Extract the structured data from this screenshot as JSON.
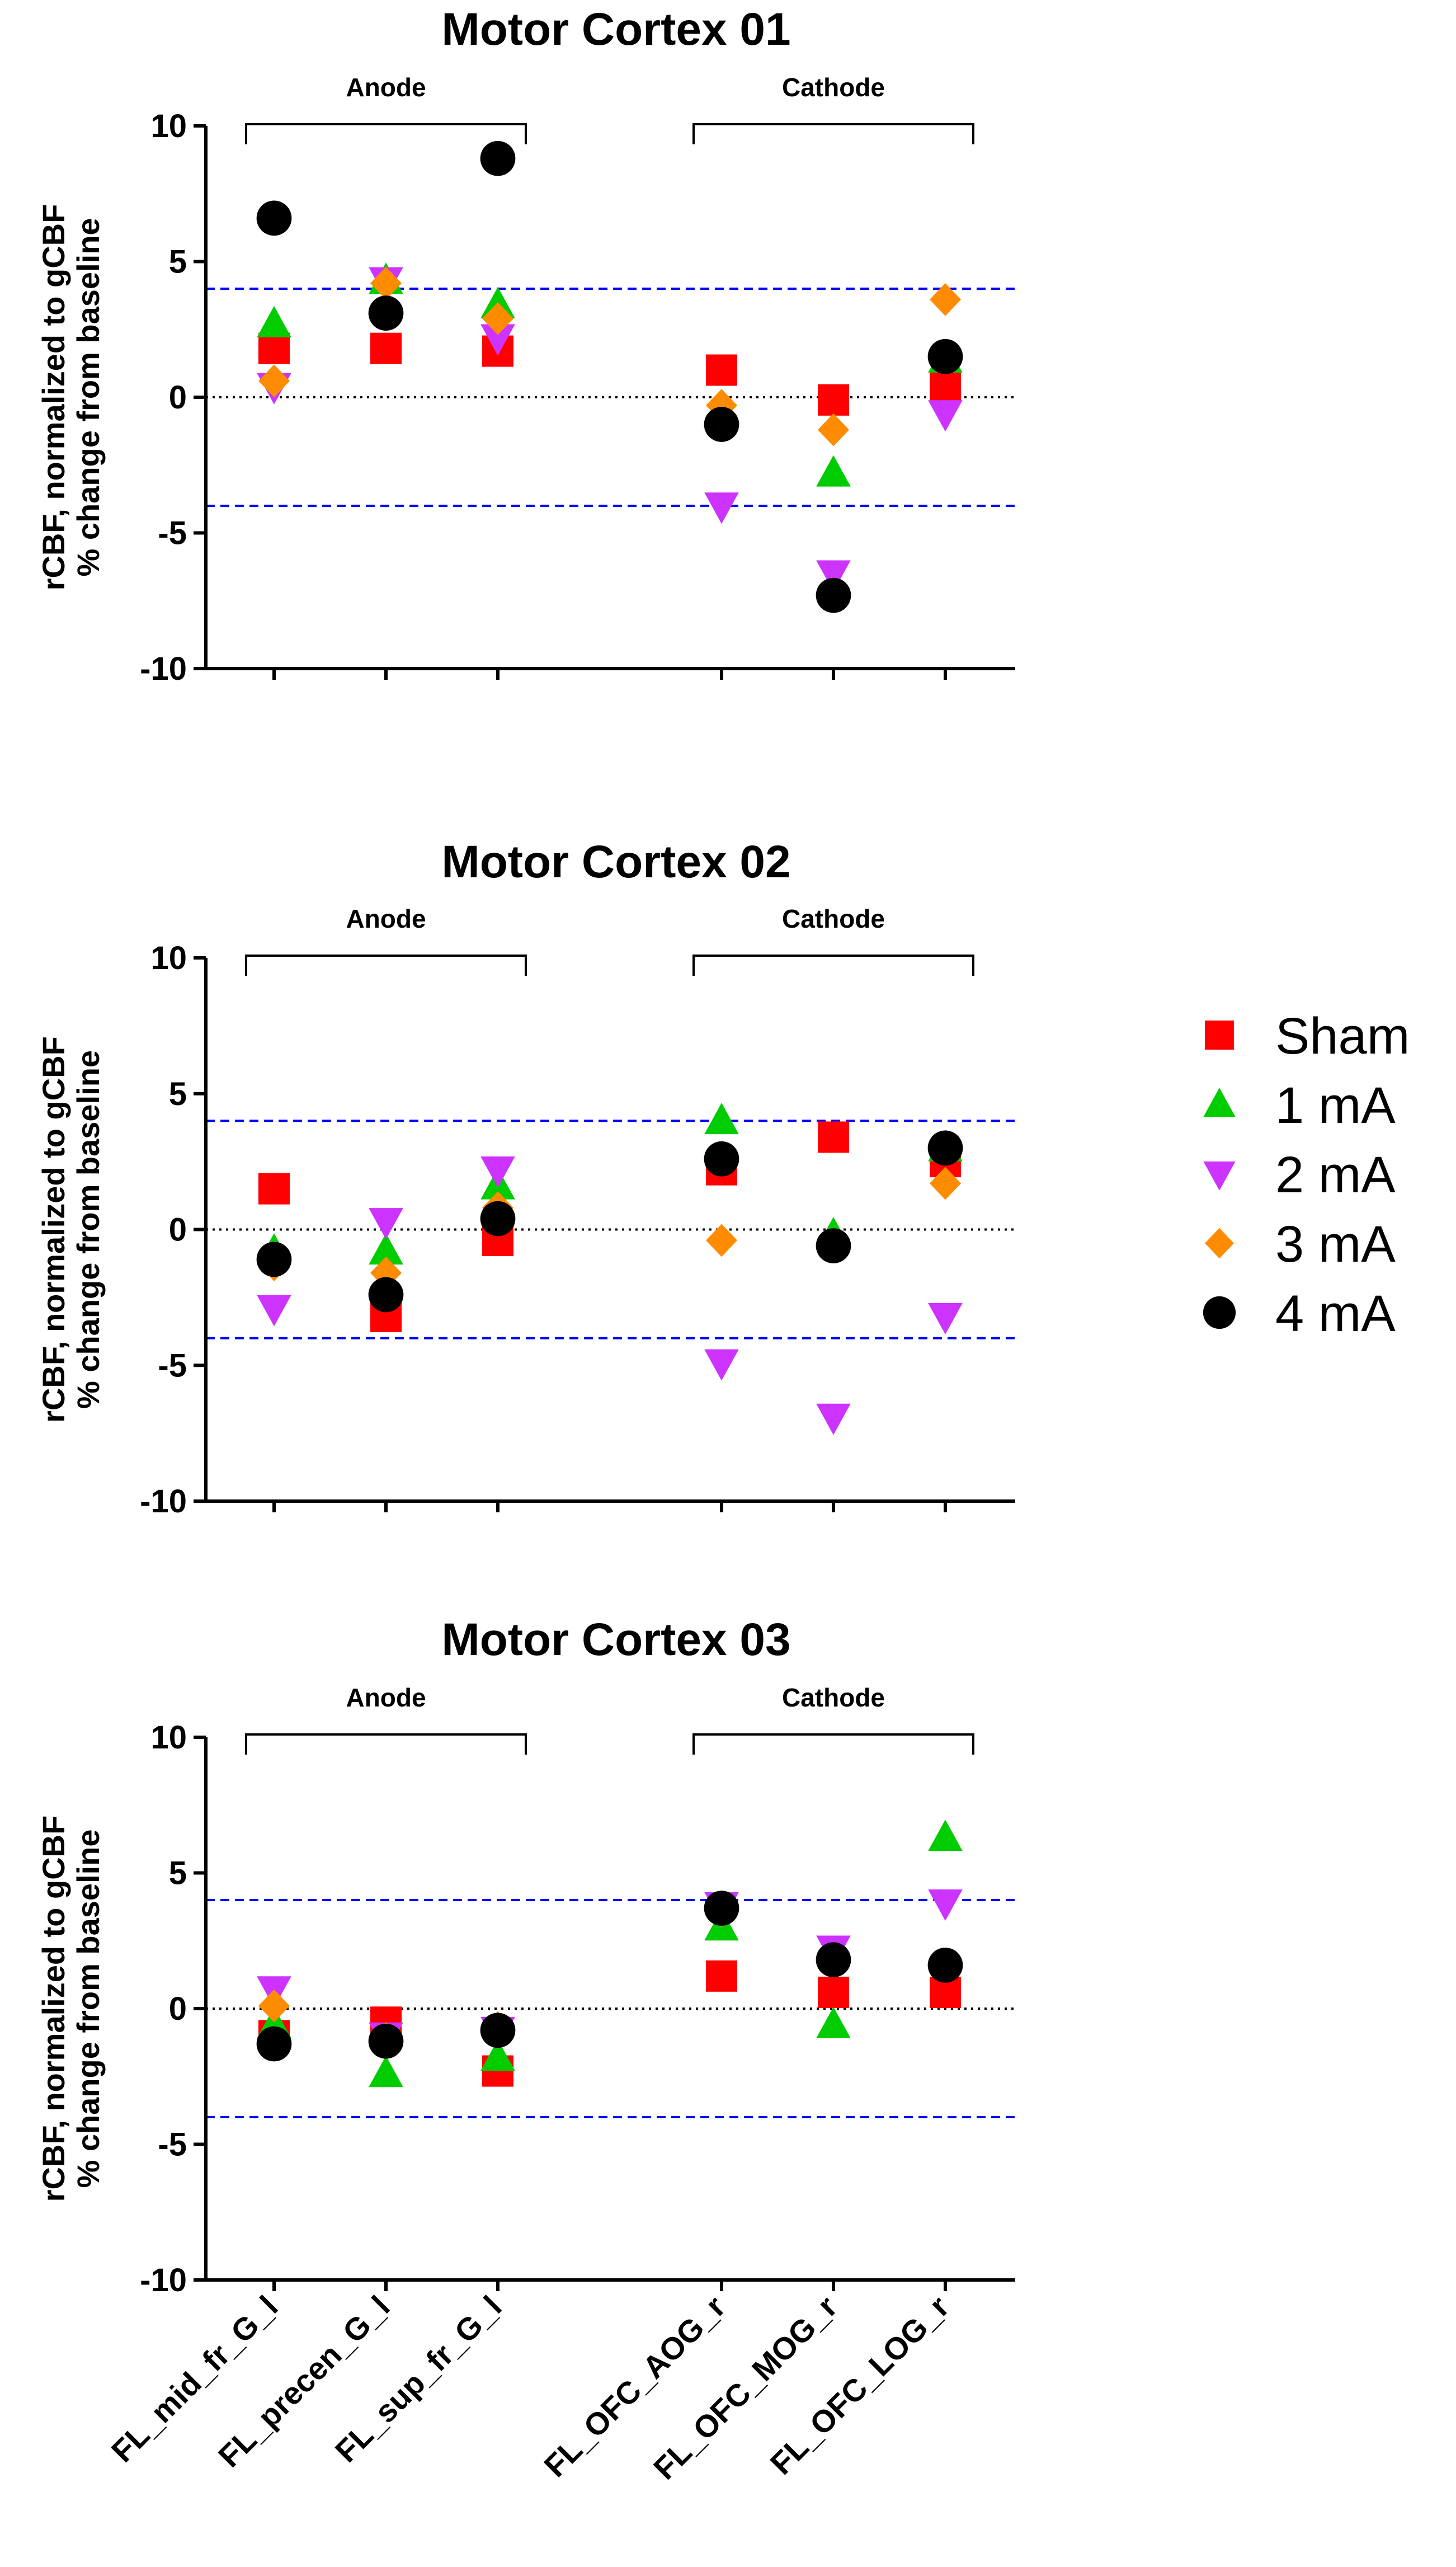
{
  "legend": [
    {
      "name": "Sham",
      "marker": "square",
      "color": "#ff0000"
    },
    {
      "name": "1 mA",
      "marker": "triangle-up",
      "color": "#00cc00"
    },
    {
      "name": "2 mA",
      "marker": "triangle-down",
      "color": "#cc33ff"
    },
    {
      "name": "3 mA",
      "marker": "diamond",
      "color": "#ff8c00"
    },
    {
      "name": "4 mA",
      "marker": "circle",
      "color": "#000000"
    }
  ],
  "reference_lines": {
    "zero_color": "#000000",
    "threshold_color": "#0000ff",
    "threshold": [
      4,
      -4
    ]
  },
  "chart_data": [
    {
      "type": "scatter",
      "title": "Motor Cortex 01",
      "ylabel_line1": "rCBF, normalized to gCBF",
      "ylabel_line2": "% change from baseline",
      "ylim": [
        -10,
        10
      ],
      "yticks": [
        "10",
        "5",
        "0",
        "-5",
        "-10"
      ],
      "groups": [
        {
          "label": "Anode",
          "from": 0,
          "to": 2
        },
        {
          "label": "Cathode",
          "from": 3,
          "to": 5
        }
      ],
      "categories": [
        "FL_mid_fr_G_l",
        "FL_precen_G_l",
        "FL_sup_fr_G_l",
        "FL_OFC_AOG_r",
        "FL_OFC_MOG_r",
        "FL_OFC_LOG_r"
      ],
      "show_category_labels": false,
      "series": [
        {
          "name": "Sham",
          "values": [
            1.8,
            1.8,
            1.7,
            1.0,
            -0.1,
            0.4
          ]
        },
        {
          "name": "1 mA",
          "values": [
            2.7,
            4.3,
            3.4,
            -0.7,
            -2.8,
            1.4
          ]
        },
        {
          "name": "2 mA",
          "values": [
            0.4,
            4.3,
            2.2,
            -4.0,
            -6.5,
            -0.6
          ]
        },
        {
          "name": "3 mA",
          "values": [
            0.6,
            4.2,
            2.9,
            -0.3,
            -1.2,
            3.6
          ]
        },
        {
          "name": "4 mA",
          "values": [
            6.6,
            3.1,
            8.8,
            -1.0,
            -7.3,
            1.5
          ]
        }
      ]
    },
    {
      "type": "scatter",
      "title": "Motor Cortex 02",
      "ylabel_line1": "rCBF, normalized to gCBF",
      "ylabel_line2": "% change from baseline",
      "ylim": [
        -10,
        10
      ],
      "yticks": [
        "10",
        "5",
        "0",
        "-5",
        "-10"
      ],
      "groups": [
        {
          "label": "Anode",
          "from": 0,
          "to": 2
        },
        {
          "label": "Cathode",
          "from": 3,
          "to": 5
        }
      ],
      "categories": [
        "FL_mid_fr_G_l",
        "FL_precen_G_l",
        "FL_sup_fr_G_l",
        "FL_OFC_AOG_r",
        "FL_OFC_MOG_r",
        "FL_OFC_LOG_r"
      ],
      "show_category_labels": false,
      "series": [
        {
          "name": "Sham",
          "values": [
            1.5,
            -3.2,
            -0.4,
            2.2,
            3.4,
            2.5
          ]
        },
        {
          "name": "1 mA",
          "values": [
            -0.8,
            -0.8,
            1.6,
            4.0,
            -0.2,
            3.0
          ]
        },
        {
          "name": "2 mA",
          "values": [
            -2.9,
            0.3,
            2.2,
            -4.9,
            -6.9,
            -3.2
          ]
        },
        {
          "name": "3 mA",
          "values": [
            -1.3,
            -1.6,
            0.8,
            -0.4,
            -0.6,
            1.7
          ]
        },
        {
          "name": "4 mA",
          "values": [
            -1.1,
            -2.4,
            0.4,
            2.6,
            -0.6,
            3.0
          ]
        }
      ]
    },
    {
      "type": "scatter",
      "title": "Motor Cortex 03",
      "ylabel_line1": "rCBF, normalized to gCBF",
      "ylabel_line2": "% change from baseline",
      "ylim": [
        -10,
        10
      ],
      "yticks": [
        "10",
        "5",
        "0",
        "-5",
        "-10"
      ],
      "groups": [
        {
          "label": "Anode",
          "from": 0,
          "to": 2
        },
        {
          "label": "Cathode",
          "from": 3,
          "to": 5
        }
      ],
      "categories": [
        "FL_mid_fr_G_l",
        "FL_precen_G_l",
        "FL_sup_fr_G_l",
        "FL_OFC_AOG_r",
        "FL_OFC_MOG_r",
        "FL_OFC_LOG_r"
      ],
      "show_category_labels": true,
      "series": [
        {
          "name": "Sham",
          "values": [
            -1.0,
            -0.5,
            -2.3,
            1.2,
            0.6,
            0.6
          ]
        },
        {
          "name": "1 mA",
          "values": [
            -0.6,
            -2.4,
            -1.8,
            3.0,
            -0.6,
            6.3
          ]
        },
        {
          "name": "2 mA",
          "values": [
            0.7,
            -1.0,
            -0.8,
            3.8,
            2.2,
            3.9
          ]
        },
        {
          "name": "3 mA",
          "values": [
            0.1,
            -1.1,
            -0.7,
            3.6,
            1.8,
            1.6
          ]
        },
        {
          "name": "4 mA",
          "values": [
            -1.3,
            -1.2,
            -0.8,
            3.7,
            1.8,
            1.6
          ]
        }
      ]
    }
  ]
}
